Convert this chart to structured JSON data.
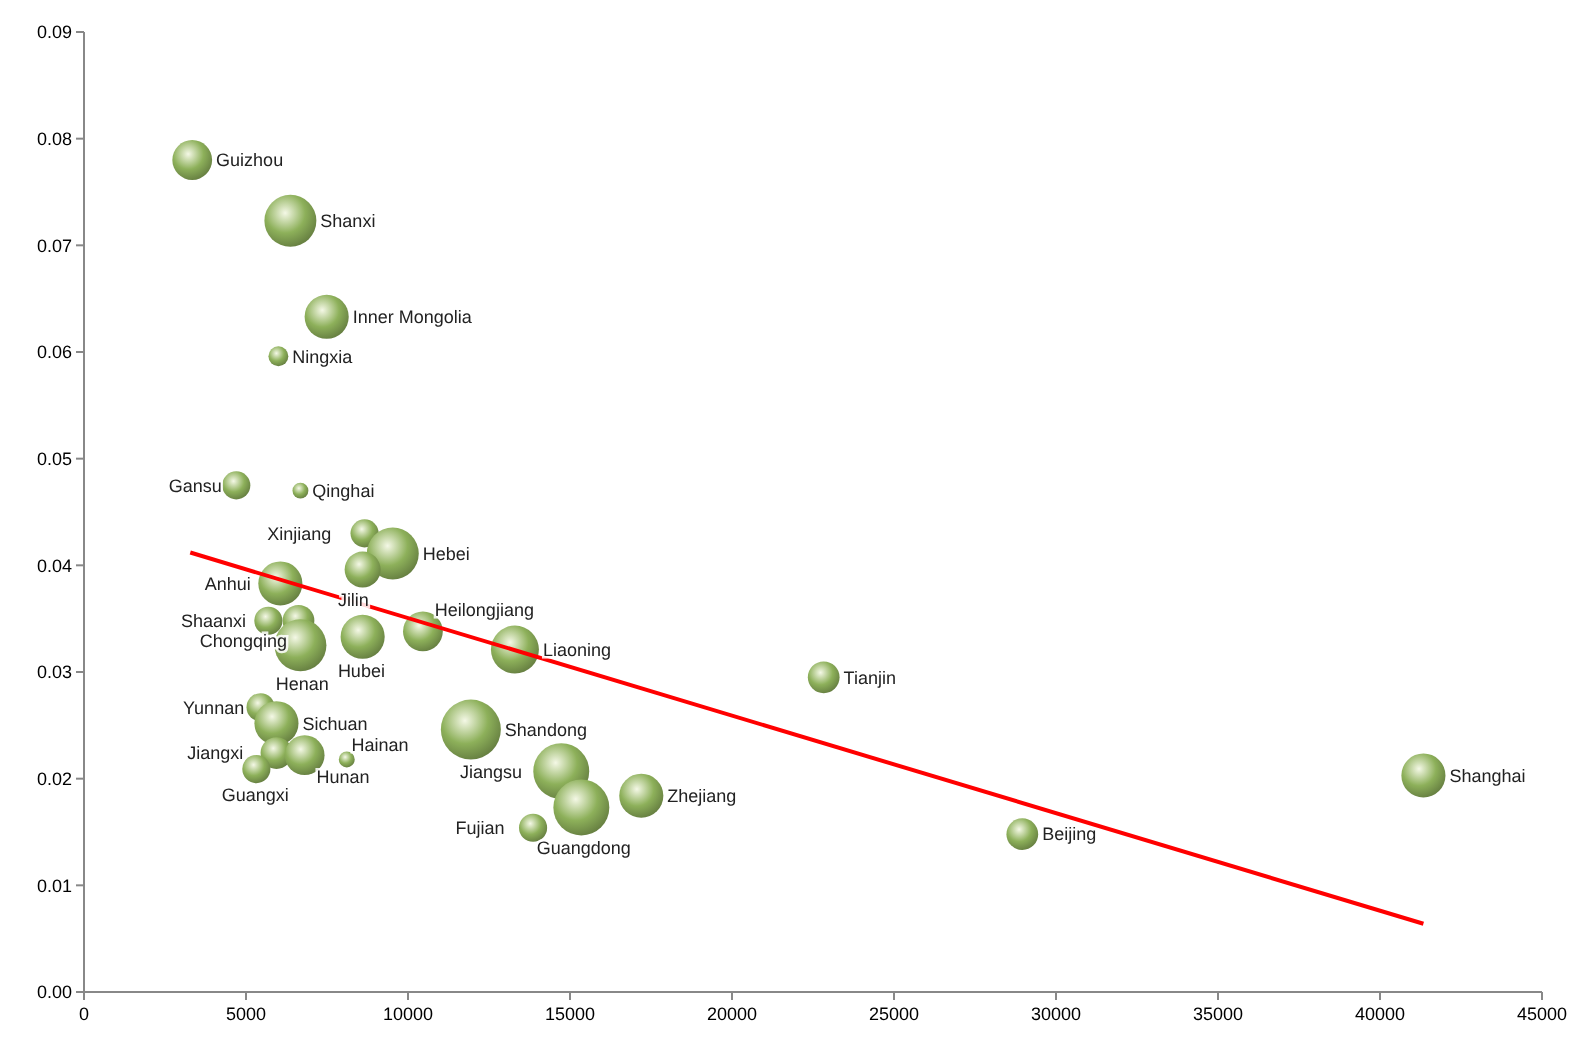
{
  "chart_data": {
    "type": "bubble",
    "xlim": [
      0,
      45000
    ],
    "ylim": [
      0,
      0.09
    ],
    "xticks": [
      0,
      5000,
      10000,
      15000,
      20000,
      25000,
      30000,
      35000,
      40000,
      45000
    ],
    "yticks": [
      {
        "value": 0,
        "label": "0.00"
      },
      {
        "value": 0.01,
        "label": "0.01"
      },
      {
        "value": 0.02,
        "label": "0.02"
      },
      {
        "value": 0.03,
        "label": "0.03"
      },
      {
        "value": 0.04,
        "label": "0.04"
      },
      {
        "value": 0.05,
        "label": "0.05"
      },
      {
        "value": 0.06,
        "label": "0.06"
      },
      {
        "value": 0.07,
        "label": "0.07"
      },
      {
        "value": 0.08,
        "label": "0.08"
      },
      {
        "value": 0.09,
        "label": "0.09"
      }
    ],
    "grid": false,
    "series": [
      {
        "type": "bubble",
        "color": "#8db05a",
        "x": [
          3340,
          6370,
          7490,
          6000,
          4700,
          6680,
          8660,
          9530,
          8600,
          6060,
          6620,
          5690,
          6680,
          8600,
          10460,
          13300,
          22830,
          5450,
          5940,
          11940,
          5940,
          5320,
          6810,
          8110,
          14730,
          15350,
          13860,
          17200,
          28960,
          41340
        ],
        "values": [
          0.078,
          0.0723,
          0.0633,
          0.0596,
          0.0475,
          0.047,
          0.043,
          0.0411,
          0.0396,
          0.0383,
          0.0348,
          0.0348,
          0.0325,
          0.0333,
          0.0338,
          0.0321,
          0.0295,
          0.0267,
          0.0252,
          0.0246,
          0.0224,
          0.0209,
          0.0222,
          0.0218,
          0.0207,
          0.0173,
          0.0154,
          0.0184,
          0.0148,
          0.0203
        ],
        "sizes": [
          0.44,
          0.75,
          0.54,
          0.11,
          0.22,
          0.07,
          0.22,
          0.75,
          0.36,
          0.54,
          0.28,
          0.22,
          0.75,
          0.54,
          0.44,
          0.64,
          0.28,
          0.22,
          0.54,
          1,
          0.28,
          0.22,
          0.44,
          0.07,
          0.87,
          0.87,
          0.22,
          0.54,
          0.28,
          0.54
        ]
      },
      {
        "type": "line",
        "color": "#ff0000",
        "x": [
          3280,
          41340
        ],
        "values": [
          0.0412,
          0.0064
        ]
      }
    ],
    "annotations": [
      {
        "text": "Guizhou",
        "x": 3340,
        "y": 0.078
      },
      {
        "text": "Shanxi",
        "x": 6370,
        "y": 0.0723
      },
      {
        "text": "Inner Mongolia",
        "x": 7490,
        "y": 0.0633
      },
      {
        "text": "Ningxia",
        "x": 6000,
        "y": 0.0596
      },
      {
        "text": "Gansu",
        "x": 4700,
        "y": 0.0475
      },
      {
        "text": "Qinghai",
        "x": 6680,
        "y": 0.047
      },
      {
        "text": "Xinjiang",
        "x": 8660,
        "y": 0.043
      },
      {
        "text": "Hebei",
        "x": 9530,
        "y": 0.0411
      },
      {
        "text": "Jilin",
        "x": 8600,
        "y": 0.0396
      },
      {
        "text": "Anhui",
        "x": 6060,
        "y": 0.0383
      },
      {
        "text": "Chongqing",
        "x": 6620,
        "y": 0.0348
      },
      {
        "text": "Shaanxi",
        "x": 5690,
        "y": 0.0348
      },
      {
        "text": "Henan",
        "x": 6680,
        "y": 0.0325
      },
      {
        "text": "Hubei",
        "x": 8600,
        "y": 0.0333
      },
      {
        "text": "Heilongjiang",
        "x": 10460,
        "y": 0.0338
      },
      {
        "text": "Liaoning",
        "x": 13300,
        "y": 0.0321
      },
      {
        "text": "Tianjin",
        "x": 22830,
        "y": 0.0295
      },
      {
        "text": "Yunnan",
        "x": 5450,
        "y": 0.0267
      },
      {
        "text": "Sichuan",
        "x": 5940,
        "y": 0.0252
      },
      {
        "text": "Shandong",
        "x": 11940,
        "y": 0.0246
      },
      {
        "text": "Jiangxi",
        "x": 5940,
        "y": 0.0224
      },
      {
        "text": "Guangxi",
        "x": 5320,
        "y": 0.0209
      },
      {
        "text": "Hunan",
        "x": 6810,
        "y": 0.0222
      },
      {
        "text": "Hainan",
        "x": 8110,
        "y": 0.0218
      },
      {
        "text": "Jiangsu",
        "x": 14730,
        "y": 0.0207
      },
      {
        "text": "Guangdong",
        "x": 15350,
        "y": 0.0173
      },
      {
        "text": "Fujian",
        "x": 13860,
        "y": 0.0154
      },
      {
        "text": "Zhejiang",
        "x": 17200,
        "y": 0.0184
      },
      {
        "text": "Beijing",
        "x": 28960,
        "y": 0.0148
      },
      {
        "text": "Shanghai",
        "x": 41340,
        "y": 0.0203
      }
    ]
  }
}
